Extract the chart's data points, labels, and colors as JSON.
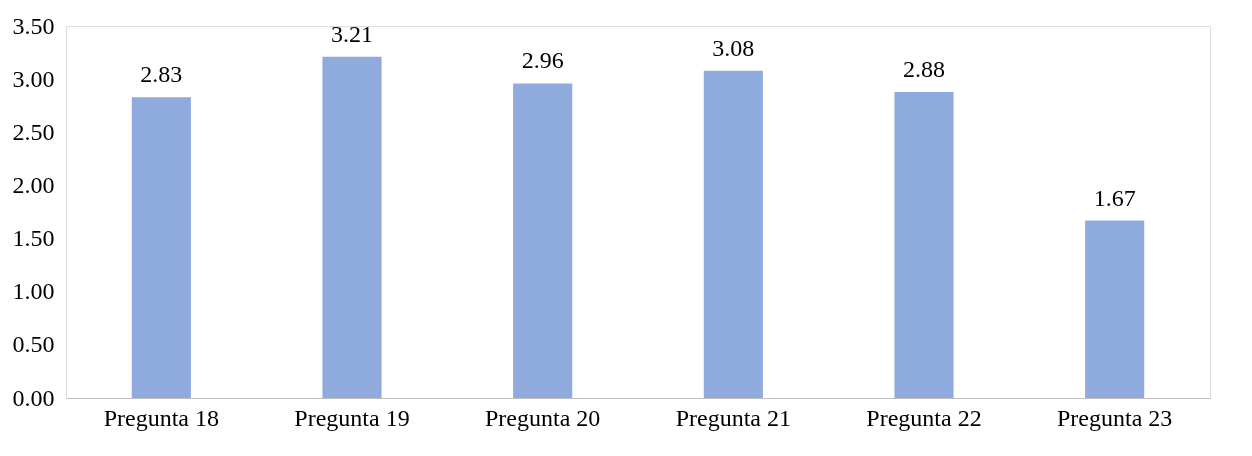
{
  "chart_data": {
    "type": "bar",
    "categories": [
      "Pregunta 18",
      "Pregunta 19",
      "Pregunta 20",
      "Pregunta 21",
      "Pregunta 22",
      "Pregunta 23"
    ],
    "values": [
      2.83,
      3.21,
      2.96,
      3.08,
      2.88,
      1.67
    ],
    "color": "#8faadc",
    "ylim": [
      0,
      3.5
    ],
    "yticks": [
      {
        "value": 0,
        "label": "0.00"
      },
      {
        "value": 0.5,
        "label": "0.50"
      },
      {
        "value": 1,
        "label": "1.00"
      },
      {
        "value": 1.5,
        "label": "1.50"
      },
      {
        "value": 2,
        "label": "2.00"
      },
      {
        "value": 2.5,
        "label": "2.50"
      },
      {
        "value": 3,
        "label": "3.00"
      },
      {
        "value": 3.5,
        "label": "3.50"
      }
    ],
    "grid": false,
    "data_labels": true
  }
}
